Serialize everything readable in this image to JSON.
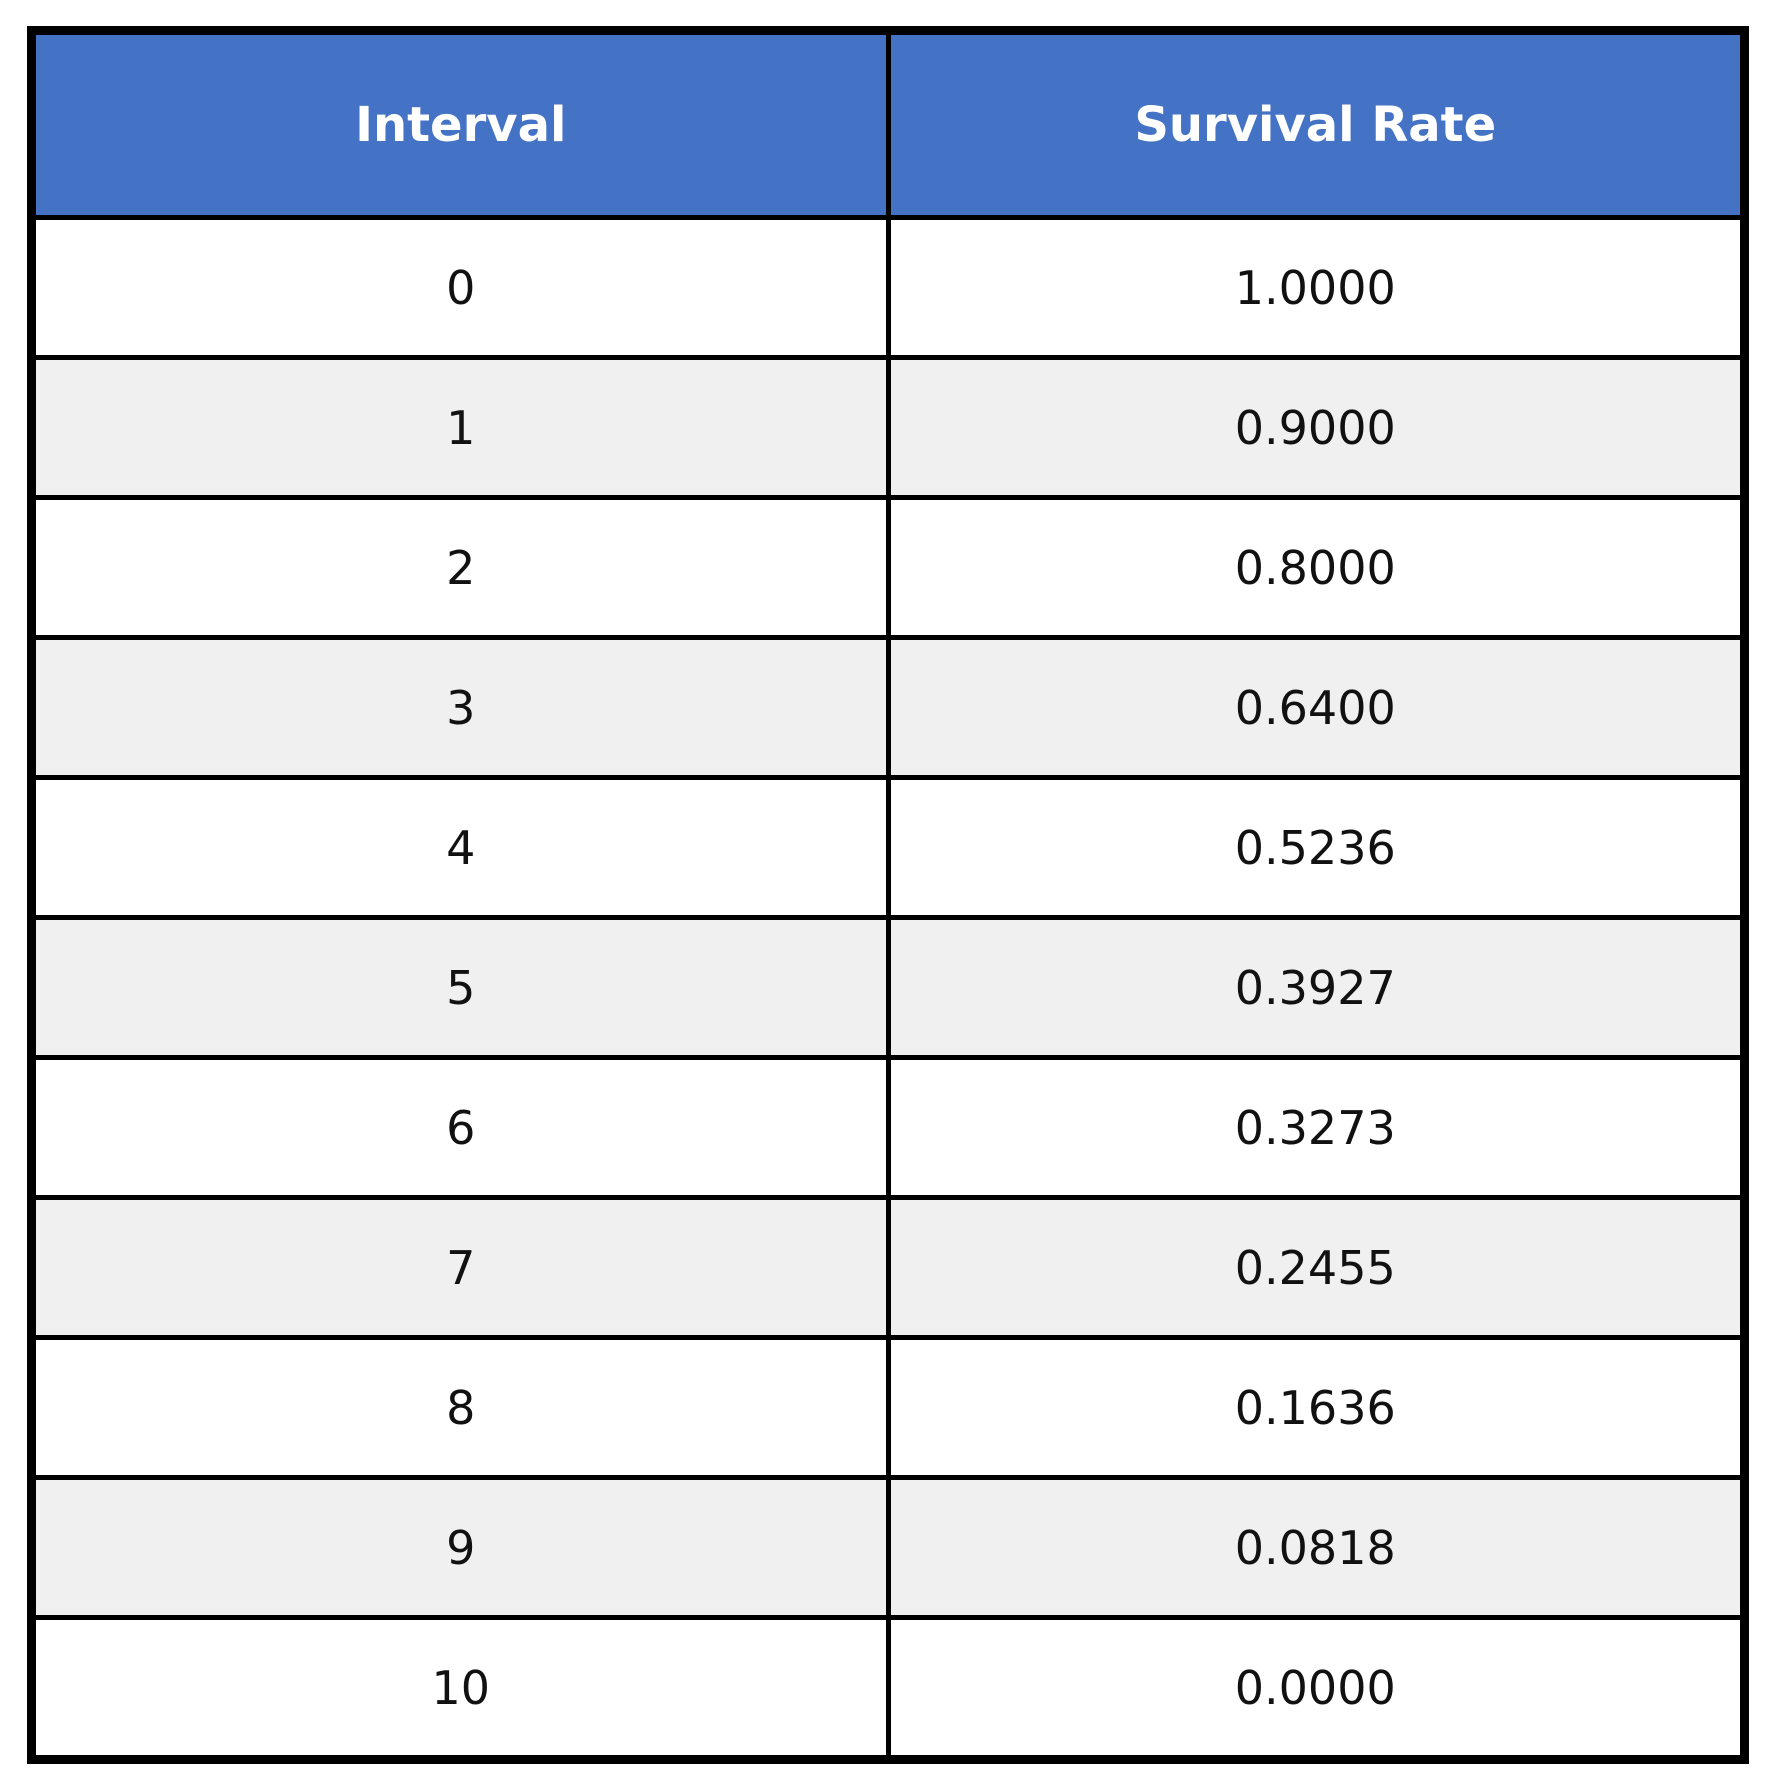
{
  "chart_data": {
    "type": "table",
    "columns": [
      "Interval",
      "Survival Rate"
    ],
    "rows": [
      [
        "0",
        "1.0000"
      ],
      [
        "1",
        "0.9000"
      ],
      [
        "2",
        "0.8000"
      ],
      [
        "3",
        "0.6400"
      ],
      [
        "4",
        "0.5236"
      ],
      [
        "5",
        "0.3927"
      ],
      [
        "6",
        "0.3273"
      ],
      [
        "7",
        "0.2455"
      ],
      [
        "8",
        "0.1636"
      ],
      [
        "9",
        "0.0818"
      ],
      [
        "10",
        "0.0000"
      ]
    ]
  },
  "colors": {
    "header_bg": "#4472C4",
    "header_text": "#FFFFFF",
    "row_alt_bg": "#F0F0F0",
    "row_bg": "#FFFFFF",
    "border": "#000000"
  }
}
